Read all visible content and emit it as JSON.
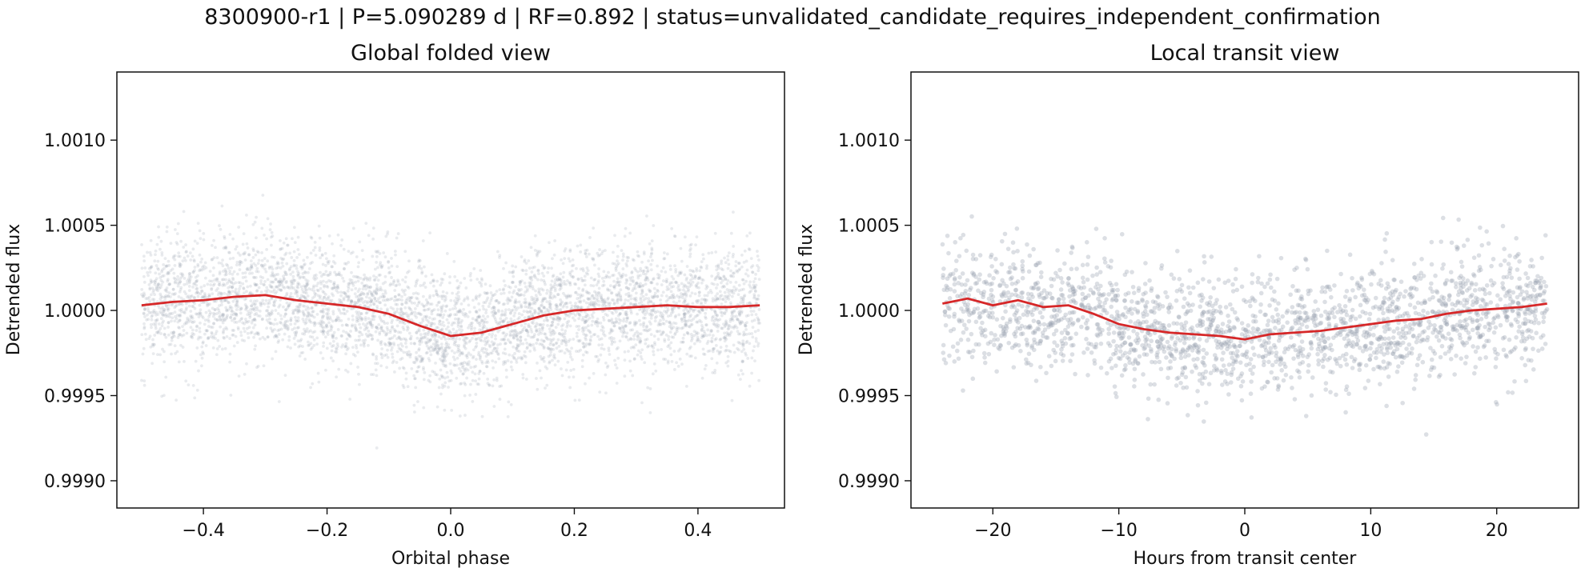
{
  "figure": {
    "suptitle": "8300900-r1 | P=5.090289 d | RF=0.892 | status=unvalidated_candidate_requires_independent_confirmation"
  },
  "chart_data": [
    {
      "type": "scatter",
      "title": "Global folded view",
      "xlabel": "Orbital phase",
      "ylabel": "Detrended flux",
      "xlim": [
        -0.54,
        0.54
      ],
      "ylim": [
        0.99884,
        1.0014
      ],
      "xticks": [
        -0.4,
        -0.2,
        0.0,
        0.2,
        0.4
      ],
      "xtick_labels": [
        "−0.4",
        "−0.2",
        "0.0",
        "0.2",
        "0.4"
      ],
      "yticks": [
        0.999,
        0.9995,
        1.0,
        1.0005,
        1.001
      ],
      "ytick_labels": [
        "0.9990",
        "0.9995",
        "1.0000",
        "1.0005",
        "1.0010"
      ],
      "grid": false,
      "series": [
        {
          "kind": "scatter",
          "color": "#9aa3b2",
          "points_description": "dense cloud of folded flux points spanning phase -0.5 to 0.5, centered near 1.0000 with scatter of about ±0.0003",
          "n_points": 5000,
          "x_range": [
            -0.5,
            0.5
          ],
          "center_flux": 1.0,
          "scatter_sigma": 0.00018
        },
        {
          "kind": "line",
          "color": "#d62728",
          "x": [
            -0.5,
            -0.45,
            -0.4,
            -0.35,
            -0.3,
            -0.25,
            -0.2,
            -0.15,
            -0.1,
            -0.05,
            0.0,
            0.05,
            0.1,
            0.15,
            0.2,
            0.25,
            0.3,
            0.35,
            0.4,
            0.45,
            0.5
          ],
          "y": [
            1.00003,
            1.00005,
            1.00006,
            1.00008,
            1.00009,
            1.00006,
            1.00004,
            1.00002,
            0.99998,
            0.99991,
            0.99985,
            0.99987,
            0.99992,
            0.99997,
            1.0,
            1.00001,
            1.00002,
            1.00003,
            1.00002,
            1.00002,
            1.00003
          ]
        }
      ]
    },
    {
      "type": "scatter",
      "title": "Local transit view",
      "xlabel": "Hours from transit center",
      "ylabel": "Detrended flux",
      "xlim": [
        -26.5,
        26.5
      ],
      "ylim": [
        0.99884,
        1.0014
      ],
      "xticks": [
        -20,
        -10,
        0,
        10,
        20
      ],
      "xtick_labels": [
        "−20",
        "−10",
        "0",
        "10",
        "20"
      ],
      "yticks": [
        0.999,
        0.9995,
        1.0,
        1.0005,
        1.001
      ],
      "ytick_labels": [
        "0.9990",
        "0.9995",
        "1.0000",
        "1.0005",
        "1.0010"
      ],
      "grid": false,
      "series": [
        {
          "kind": "scatter",
          "color": "#9aa3b2",
          "points_description": "cloud of flux points from about -24 to 24 hours, centered near 1.0000 with scatter of about ±0.0003",
          "n_points": 2200,
          "x_range": [
            -24,
            24
          ],
          "center_flux": 1.0,
          "scatter_sigma": 0.00018
        },
        {
          "kind": "line",
          "color": "#d62728",
          "x": [
            -24,
            -22,
            -20,
            -18,
            -16,
            -14,
            -12,
            -10,
            -8,
            -6,
            -4,
            -2,
            0,
            2,
            4,
            6,
            8,
            10,
            12,
            14,
            16,
            18,
            20,
            22,
            24
          ],
          "y": [
            1.00004,
            1.00007,
            1.00003,
            1.00006,
            1.00002,
            1.00003,
            0.99998,
            0.99992,
            0.99989,
            0.99987,
            0.99986,
            0.99985,
            0.99983,
            0.99986,
            0.99987,
            0.99988,
            0.9999,
            0.99992,
            0.99994,
            0.99995,
            0.99998,
            1.0,
            1.00001,
            1.00002,
            1.00004
          ]
        }
      ]
    }
  ]
}
